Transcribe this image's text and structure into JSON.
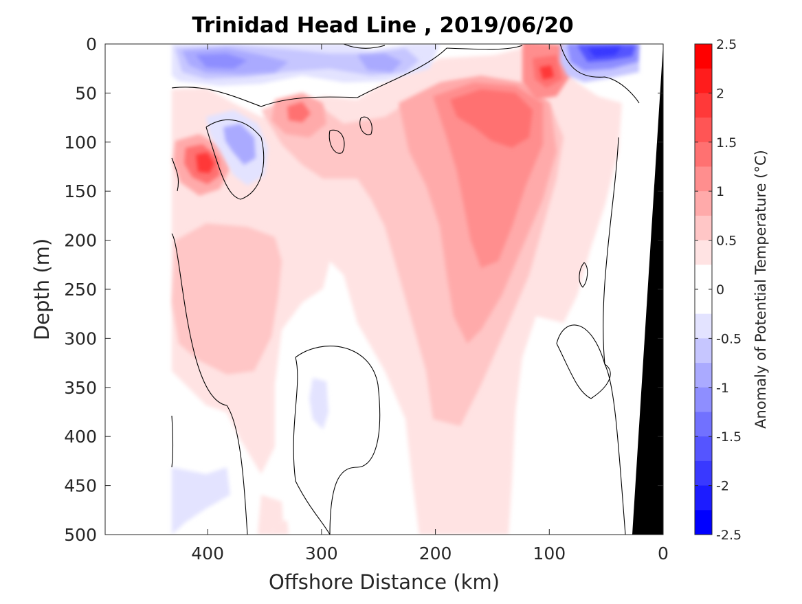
{
  "chart_data": {
    "type": "heatmap",
    "title": "Trinidad Head Line , 2019/06/20",
    "xlabel": "Offshore Distance (km)",
    "ylabel": "Depth (m)",
    "xlim": [
      490,
      0
    ],
    "ylim": [
      0,
      500
    ],
    "x_reversed": true,
    "y_reversed": true,
    "x_ticks": [
      400,
      300,
      200,
      100,
      0
    ],
    "y_ticks": [
      0,
      50,
      100,
      150,
      200,
      250,
      300,
      350,
      400,
      450,
      500
    ],
    "data_extent_km": [
      430,
      0
    ],
    "colorbar": {
      "label": "Anomaly of Potential Temperature (°C)",
      "range": [
        -2.5,
        2.5
      ],
      "ticks": [
        2.5,
        2,
        1.5,
        1,
        0.5,
        0,
        -0.5,
        -1,
        -1.5,
        -2,
        -2.5
      ],
      "levels": [
        {
          "from": 2.25,
          "to": 2.5,
          "color": "#ff0000"
        },
        {
          "from": 2.0,
          "to": 2.25,
          "color": "#ff1c1c"
        },
        {
          "from": 1.75,
          "to": 2.0,
          "color": "#ff3939"
        },
        {
          "from": 1.5,
          "to": 1.75,
          "color": "#ff5555"
        },
        {
          "from": 1.25,
          "to": 1.5,
          "color": "#ff7171"
        },
        {
          "from": 1.0,
          "to": 1.25,
          "color": "#ff8e8e"
        },
        {
          "from": 0.75,
          "to": 1.0,
          "color": "#ffaaaa"
        },
        {
          "from": 0.5,
          "to": 0.75,
          "color": "#ffc6c6"
        },
        {
          "from": 0.25,
          "to": 0.5,
          "color": "#ffe3e3"
        },
        {
          "from": 0.0,
          "to": 0.25,
          "color": "#ffffff"
        },
        {
          "from": -0.25,
          "to": 0.0,
          "color": "#ffffff"
        },
        {
          "from": -0.5,
          "to": -0.25,
          "color": "#e3e3ff"
        },
        {
          "from": -0.75,
          "to": -0.5,
          "color": "#c6c6ff"
        },
        {
          "from": -1.0,
          "to": -0.75,
          "color": "#aaaaff"
        },
        {
          "from": -1.25,
          "to": -1.0,
          "color": "#8e8eff"
        },
        {
          "from": -1.5,
          "to": -1.25,
          "color": "#7171ff"
        },
        {
          "from": -1.75,
          "to": -1.5,
          "color": "#5555ff"
        },
        {
          "from": -2.0,
          "to": -1.75,
          "color": "#3939ff"
        },
        {
          "from": -2.25,
          "to": -2.0,
          "color": "#1c1cff"
        },
        {
          "from": -2.5,
          "to": -2.25,
          "color": "#0000ff"
        }
      ]
    },
    "features": [
      {
        "name": "upper-150m-warm-core",
        "x_center_km": 150,
        "depth_m": [
          40,
          290
        ],
        "anomaly_max": 1.5
      },
      {
        "name": "warm-lens-400km",
        "x_center_km": 400,
        "depth_center_m": 120,
        "anomaly_max": 1.75
      },
      {
        "name": "warm-lens-100km",
        "x_center_km": 105,
        "depth_center_m": 30,
        "anomaly_max": 1.75
      },
      {
        "name": "cold-surface-layer-350km",
        "x_range_km": [
          430,
          230
        ],
        "depth_m": [
          0,
          40
        ],
        "anomaly_min": -1.25
      },
      {
        "name": "cold-surface-nearshore",
        "x_range_km": [
          100,
          25
        ],
        "depth_m": [
          0,
          40
        ],
        "anomaly_min": -2.0
      },
      {
        "name": "cold-lens-365km",
        "x_center_km": 365,
        "depth_center_m": 100,
        "anomaly_min": -1.0
      }
    ]
  }
}
